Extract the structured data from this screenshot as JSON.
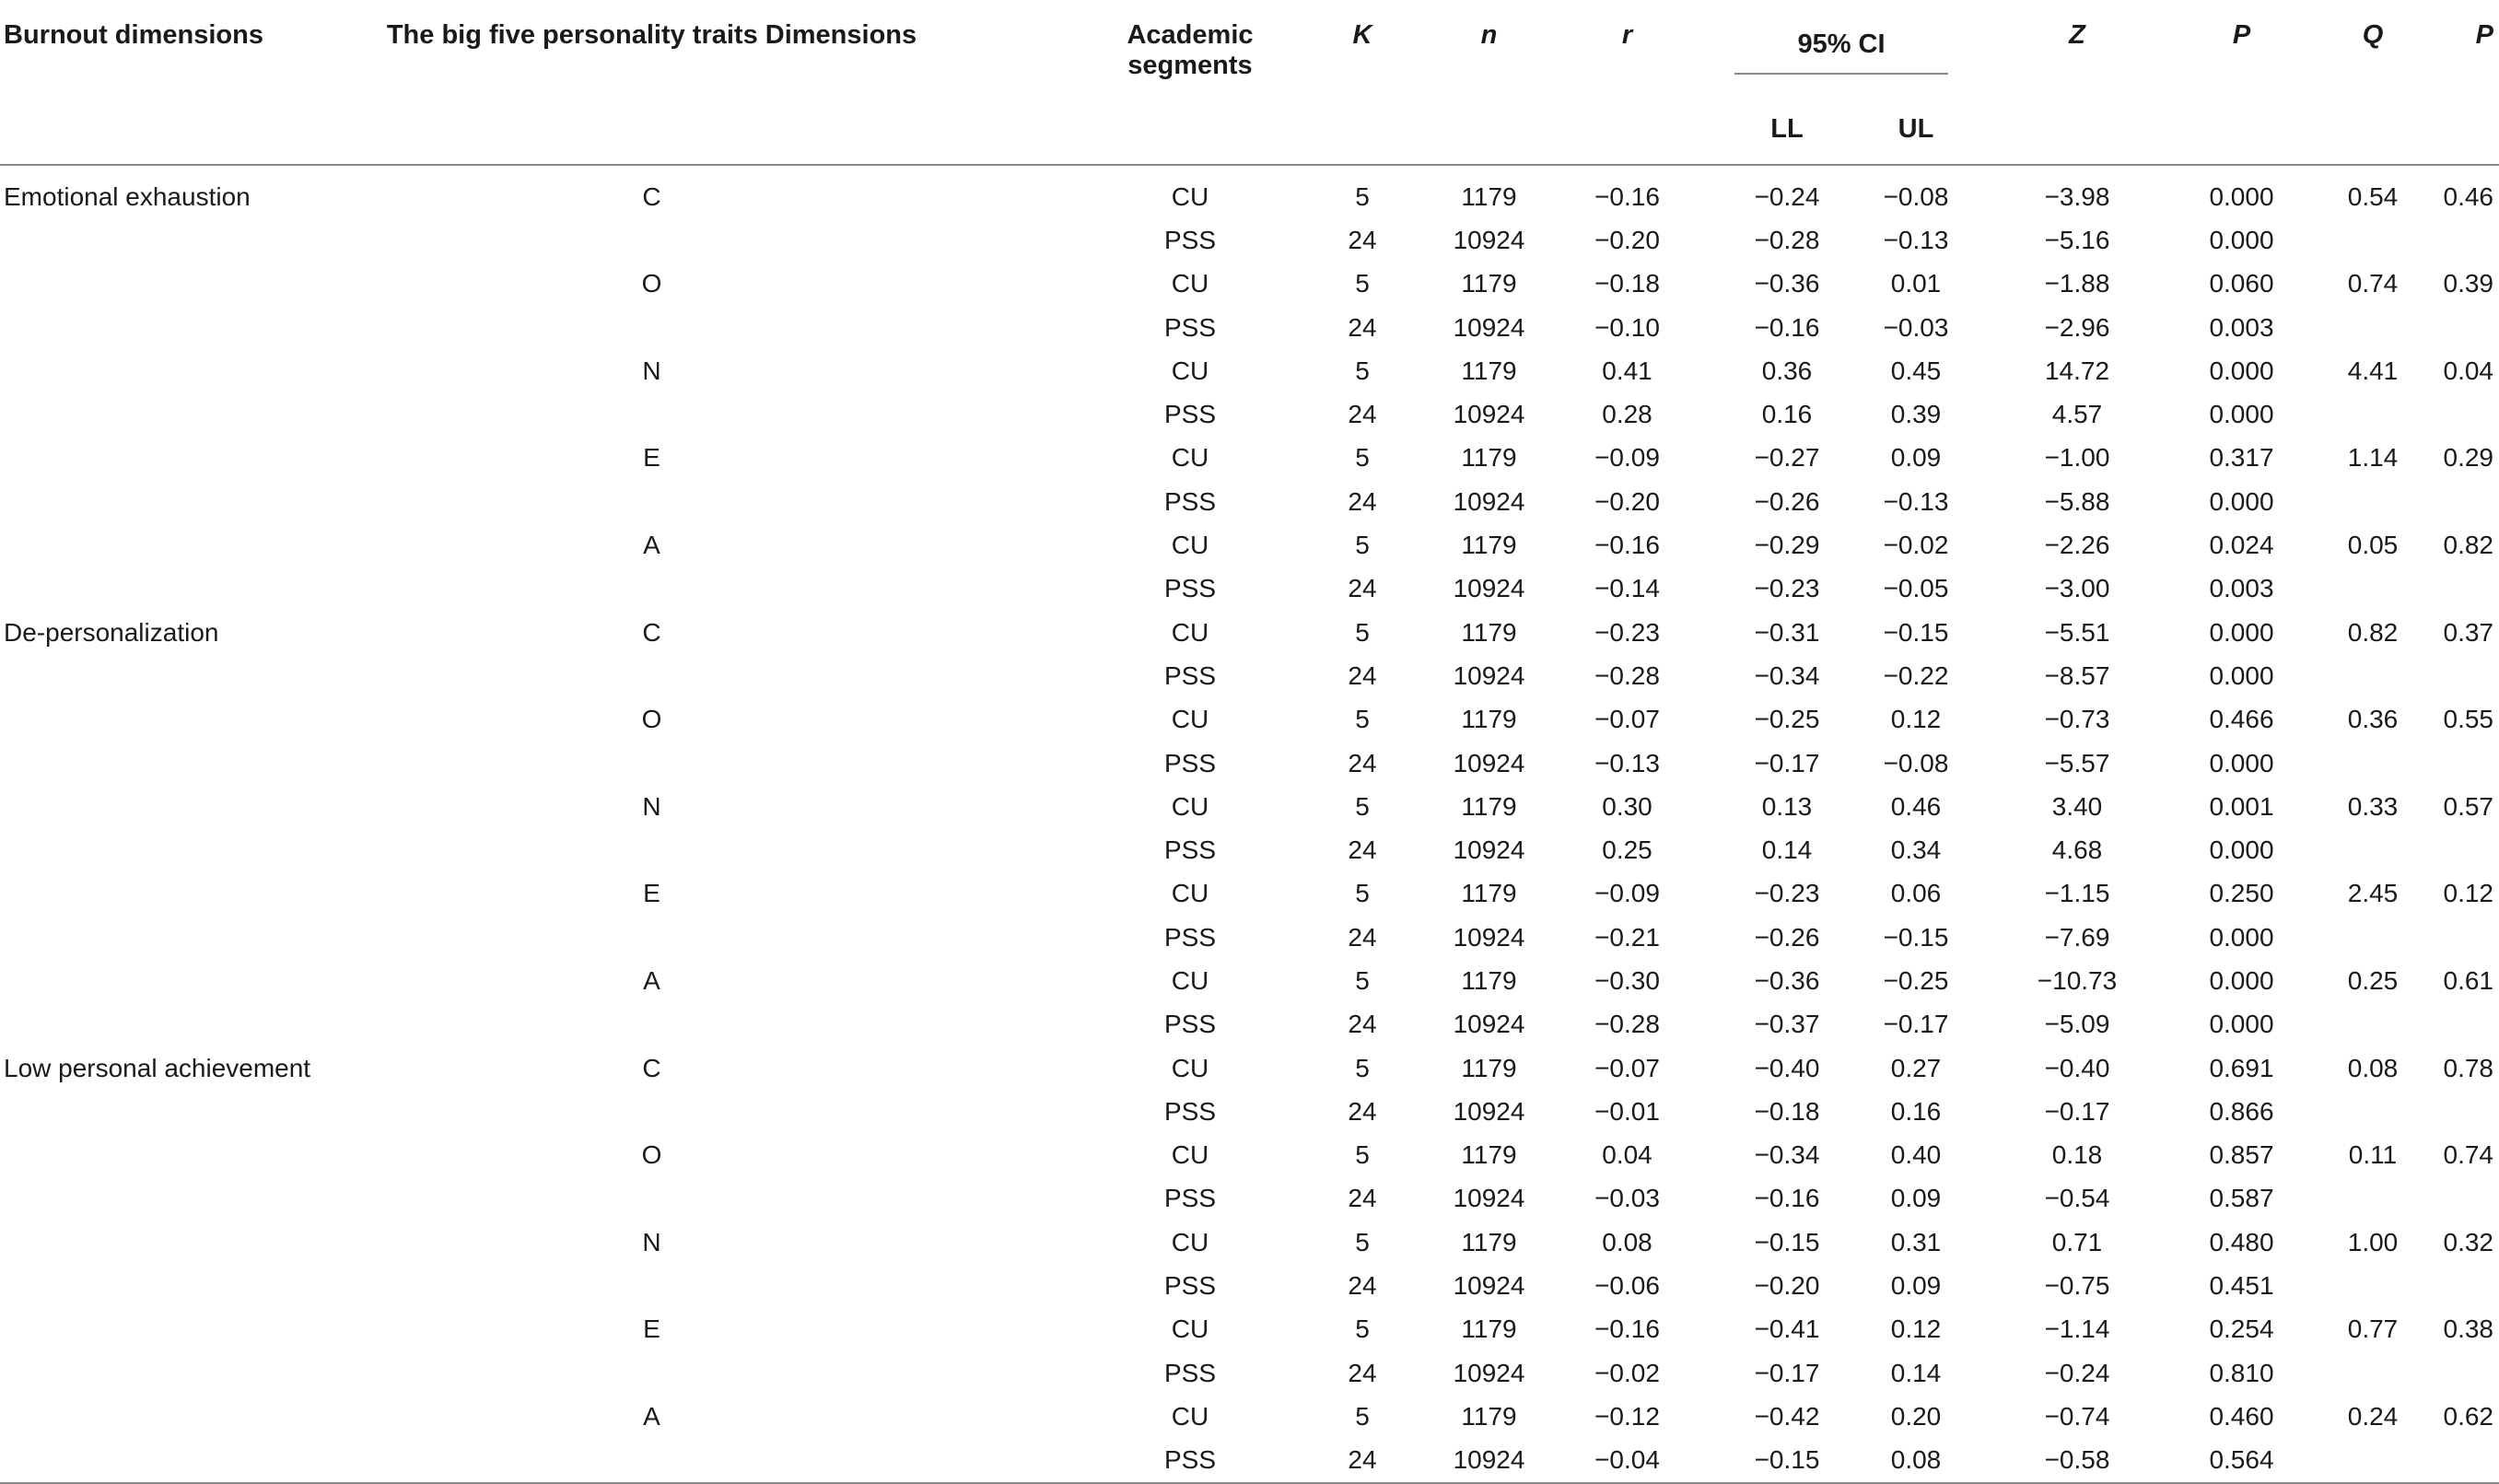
{
  "headers": {
    "burnout": "Burnout dimensions",
    "traits": "The big five personality traits Dimensions",
    "segments": "Academic segments",
    "k": "K",
    "n": "n",
    "r": "r",
    "ci": "95% CI",
    "ll": "LL",
    "ul": "UL",
    "z": "Z",
    "p": "P",
    "q": "Q",
    "p2": "P"
  },
  "rows": [
    {
      "burnout": "Emotional exhaustion",
      "trait": "C",
      "seg": "CU",
      "k": "5",
      "n": "1179",
      "r": "−0.16",
      "ll": "−0.24",
      "ul": "−0.08",
      "z": "−3.98",
      "p": "0.000",
      "q": "0.54",
      "p2": "0.46"
    },
    {
      "burnout": "",
      "trait": "",
      "seg": "PSS",
      "k": "24",
      "n": "10924",
      "r": "−0.20",
      "ll": "−0.28",
      "ul": "−0.13",
      "z": "−5.16",
      "p": "0.000",
      "q": "",
      "p2": ""
    },
    {
      "burnout": "",
      "trait": "O",
      "seg": "CU",
      "k": "5",
      "n": "1179",
      "r": "−0.18",
      "ll": "−0.36",
      "ul": "0.01",
      "z": "−1.88",
      "p": "0.060",
      "q": "0.74",
      "p2": "0.39"
    },
    {
      "burnout": "",
      "trait": "",
      "seg": "PSS",
      "k": "24",
      "n": "10924",
      "r": "−0.10",
      "ll": "−0.16",
      "ul": "−0.03",
      "z": "−2.96",
      "p": "0.003",
      "q": "",
      "p2": ""
    },
    {
      "burnout": "",
      "trait": "N",
      "seg": "CU",
      "k": "5",
      "n": "1179",
      "r": "0.41",
      "ll": "0.36",
      "ul": "0.45",
      "z": "14.72",
      "p": "0.000",
      "q": "4.41",
      "p2": "0.04"
    },
    {
      "burnout": "",
      "trait": "",
      "seg": "PSS",
      "k": "24",
      "n": "10924",
      "r": "0.28",
      "ll": "0.16",
      "ul": "0.39",
      "z": "4.57",
      "p": "0.000",
      "q": "",
      "p2": ""
    },
    {
      "burnout": "",
      "trait": "E",
      "seg": "CU",
      "k": "5",
      "n": "1179",
      "r": "−0.09",
      "ll": "−0.27",
      "ul": "0.09",
      "z": "−1.00",
      "p": "0.317",
      "q": "1.14",
      "p2": "0.29"
    },
    {
      "burnout": "",
      "trait": "",
      "seg": "PSS",
      "k": "24",
      "n": "10924",
      "r": "−0.20",
      "ll": "−0.26",
      "ul": "−0.13",
      "z": "−5.88",
      "p": "0.000",
      "q": "",
      "p2": ""
    },
    {
      "burnout": "",
      "trait": "A",
      "seg": "CU",
      "k": "5",
      "n": "1179",
      "r": "−0.16",
      "ll": "−0.29",
      "ul": "−0.02",
      "z": "−2.26",
      "p": "0.024",
      "q": "0.05",
      "p2": "0.82"
    },
    {
      "burnout": "",
      "trait": "",
      "seg": "PSS",
      "k": "24",
      "n": "10924",
      "r": "−0.14",
      "ll": "−0.23",
      "ul": "−0.05",
      "z": "−3.00",
      "p": "0.003",
      "q": "",
      "p2": ""
    },
    {
      "burnout": "De-personalization",
      "trait": "C",
      "seg": "CU",
      "k": "5",
      "n": "1179",
      "r": "−0.23",
      "ll": "−0.31",
      "ul": "−0.15",
      "z": "−5.51",
      "p": "0.000",
      "q": "0.82",
      "p2": "0.37"
    },
    {
      "burnout": "",
      "trait": "",
      "seg": "PSS",
      "k": "24",
      "n": "10924",
      "r": "−0.28",
      "ll": "−0.34",
      "ul": "−0.22",
      "z": "−8.57",
      "p": "0.000",
      "q": "",
      "p2": ""
    },
    {
      "burnout": "",
      "trait": "O",
      "seg": "CU",
      "k": "5",
      "n": "1179",
      "r": "−0.07",
      "ll": "−0.25",
      "ul": "0.12",
      "z": "−0.73",
      "p": "0.466",
      "q": "0.36",
      "p2": "0.55"
    },
    {
      "burnout": "",
      "trait": "",
      "seg": "PSS",
      "k": "24",
      "n": "10924",
      "r": "−0.13",
      "ll": "−0.17",
      "ul": "−0.08",
      "z": "−5.57",
      "p": "0.000",
      "q": "",
      "p2": ""
    },
    {
      "burnout": "",
      "trait": "N",
      "seg": "CU",
      "k": "5",
      "n": "1179",
      "r": "0.30",
      "ll": "0.13",
      "ul": "0.46",
      "z": "3.40",
      "p": "0.001",
      "q": "0.33",
      "p2": "0.57"
    },
    {
      "burnout": "",
      "trait": "",
      "seg": "PSS",
      "k": "24",
      "n": "10924",
      "r": "0.25",
      "ll": "0.14",
      "ul": "0.34",
      "z": "4.68",
      "p": "0.000",
      "q": "",
      "p2": ""
    },
    {
      "burnout": "",
      "trait": "E",
      "seg": "CU",
      "k": "5",
      "n": "1179",
      "r": "−0.09",
      "ll": "−0.23",
      "ul": "0.06",
      "z": "−1.15",
      "p": "0.250",
      "q": "2.45",
      "p2": "0.12"
    },
    {
      "burnout": "",
      "trait": "",
      "seg": "PSS",
      "k": "24",
      "n": "10924",
      "r": "−0.21",
      "ll": "−0.26",
      "ul": "−0.15",
      "z": "−7.69",
      "p": "0.000",
      "q": "",
      "p2": ""
    },
    {
      "burnout": "",
      "trait": "A",
      "seg": "CU",
      "k": "5",
      "n": "1179",
      "r": "−0.30",
      "ll": "−0.36",
      "ul": "−0.25",
      "z": "−10.73",
      "p": "0.000",
      "q": "0.25",
      "p2": "0.61"
    },
    {
      "burnout": "",
      "trait": "",
      "seg": "PSS",
      "k": "24",
      "n": "10924",
      "r": "−0.28",
      "ll": "−0.37",
      "ul": "−0.17",
      "z": "−5.09",
      "p": "0.000",
      "q": "",
      "p2": ""
    },
    {
      "burnout": "Low personal achievement",
      "trait": "C",
      "seg": "CU",
      "k": "5",
      "n": "1179",
      "r": "−0.07",
      "ll": "−0.40",
      "ul": "0.27",
      "z": "−0.40",
      "p": "0.691",
      "q": "0.08",
      "p2": "0.78"
    },
    {
      "burnout": "",
      "trait": "",
      "seg": "PSS",
      "k": "24",
      "n": "10924",
      "r": "−0.01",
      "ll": "−0.18",
      "ul": "0.16",
      "z": "−0.17",
      "p": "0.866",
      "q": "",
      "p2": ""
    },
    {
      "burnout": "",
      "trait": "O",
      "seg": "CU",
      "k": "5",
      "n": "1179",
      "r": "0.04",
      "ll": "−0.34",
      "ul": "0.40",
      "z": "0.18",
      "p": "0.857",
      "q": "0.11",
      "p2": "0.74"
    },
    {
      "burnout": "",
      "trait": "",
      "seg": "PSS",
      "k": "24",
      "n": "10924",
      "r": "−0.03",
      "ll": "−0.16",
      "ul": "0.09",
      "z": "−0.54",
      "p": "0.587",
      "q": "",
      "p2": ""
    },
    {
      "burnout": "",
      "trait": "N",
      "seg": "CU",
      "k": "5",
      "n": "1179",
      "r": "0.08",
      "ll": "−0.15",
      "ul": "0.31",
      "z": "0.71",
      "p": "0.480",
      "q": "1.00",
      "p2": "0.32"
    },
    {
      "burnout": "",
      "trait": "",
      "seg": "PSS",
      "k": "24",
      "n": "10924",
      "r": "−0.06",
      "ll": "−0.20",
      "ul": "0.09",
      "z": "−0.75",
      "p": "0.451",
      "q": "",
      "p2": ""
    },
    {
      "burnout": "",
      "trait": "E",
      "seg": "CU",
      "k": "5",
      "n": "1179",
      "r": "−0.16",
      "ll": "−0.41",
      "ul": "0.12",
      "z": "−1.14",
      "p": "0.254",
      "q": "0.77",
      "p2": "0.38"
    },
    {
      "burnout": "",
      "trait": "",
      "seg": "PSS",
      "k": "24",
      "n": "10924",
      "r": "−0.02",
      "ll": "−0.17",
      "ul": "0.14",
      "z": "−0.24",
      "p": "0.810",
      "q": "",
      "p2": ""
    },
    {
      "burnout": "",
      "trait": "A",
      "seg": "CU",
      "k": "5",
      "n": "1179",
      "r": "−0.12",
      "ll": "−0.42",
      "ul": "0.20",
      "z": "−0.74",
      "p": "0.460",
      "q": "0.24",
      "p2": "0.62"
    },
    {
      "burnout": "",
      "trait": "",
      "seg": "PSS",
      "k": "24",
      "n": "10924",
      "r": "−0.04",
      "ll": "−0.15",
      "ul": "0.08",
      "z": "−0.58",
      "p": "0.564",
      "q": "",
      "p2": ""
    }
  ]
}
